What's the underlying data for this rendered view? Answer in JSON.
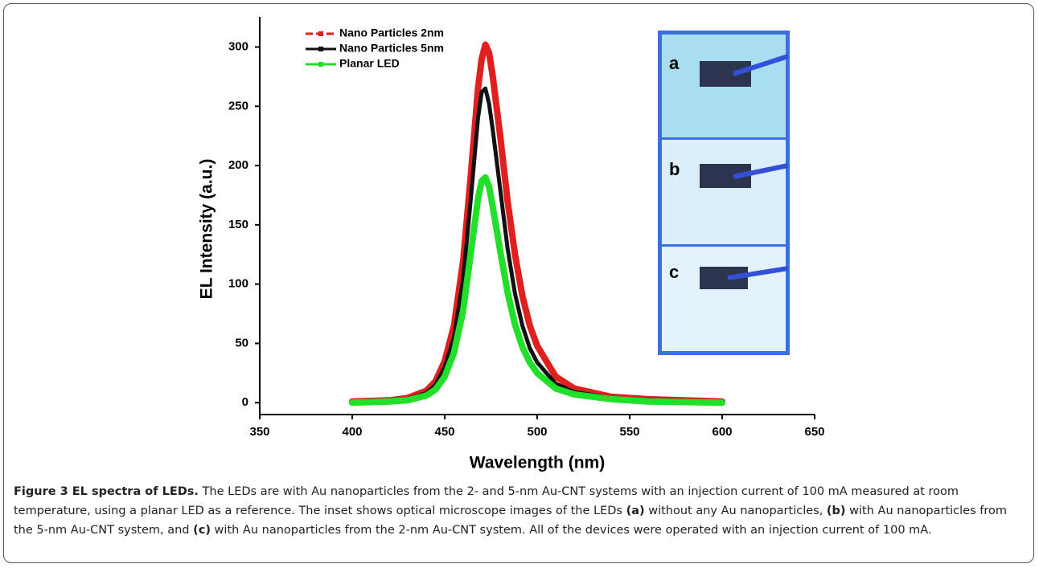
{
  "chart_data": {
    "type": "line",
    "x": [
      400,
      420,
      430,
      440,
      445,
      450,
      455,
      460,
      464,
      468,
      470,
      472,
      474,
      476,
      480,
      484,
      488,
      492,
      496,
      500,
      510,
      520,
      540,
      560,
      600
    ],
    "series": [
      {
        "name": "Nano Particles 2nm",
        "color": "#e0201e",
        "values": [
          1,
          2,
          4,
          10,
          18,
          35,
          65,
          120,
          190,
          265,
          290,
          302,
          295,
          275,
          225,
          170,
          125,
          90,
          65,
          48,
          22,
          12,
          5,
          3,
          1
        ]
      },
      {
        "name": "Nano Particles 5nm",
        "color": "#111111",
        "values": [
          0,
          1,
          3,
          8,
          15,
          30,
          55,
          105,
          170,
          240,
          262,
          265,
          252,
          230,
          180,
          130,
          92,
          65,
          46,
          34,
          16,
          9,
          4,
          2,
          1
        ]
      },
      {
        "name": "Planar LED",
        "color": "#22e02a",
        "values": [
          0,
          1,
          2,
          6,
          11,
          22,
          42,
          78,
          125,
          172,
          187,
          190,
          182,
          165,
          128,
          93,
          66,
          47,
          34,
          25,
          12,
          7,
          3,
          1,
          0
        ]
      }
    ],
    "x_label": "Wavelength (nm)",
    "y_label": "EL Intensity (a.u.)",
    "xlim": [
      350,
      650
    ],
    "xticks": [
      350,
      400,
      450,
      500,
      550,
      600,
      650
    ],
    "ylim": [
      -10,
      320
    ],
    "yticks": [
      0,
      50,
      100,
      150,
      200,
      250,
      300
    ],
    "legend": "upper-left",
    "inset_labels": [
      "a",
      "b",
      "c"
    ]
  },
  "caption": {
    "segments": [
      "Figure 3 EL spectra of LEDs.",
      " The LEDs are with Au nanoparticles from the 2- and 5-nm Au-CNT systems with an injection current of 100 mA measured at room temperature, using a planar LED as a reference. The inset shows optical microscope images of the LEDs ",
      "(a)",
      " without any Au nanoparticles, ",
      "(b)",
      " with Au nanoparticles from the 5-nm Au-CNT system, and ",
      "(c)",
      " with Au nanoparticles from the 2-nm Au-CNT system. All of the devices were operated with an injection current of 100 mA."
    ]
  }
}
